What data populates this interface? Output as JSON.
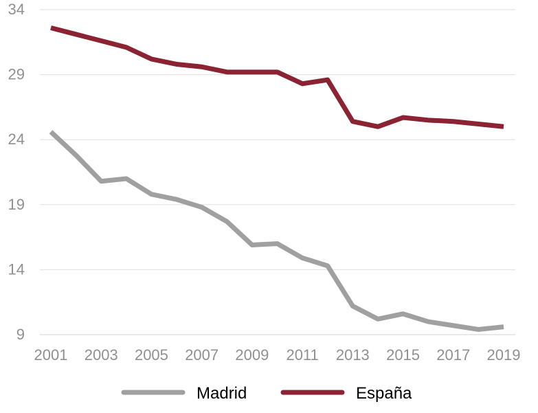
{
  "chart_data": {
    "type": "line",
    "title": "",
    "xlabel": "",
    "ylabel": "",
    "x": [
      2001,
      2002,
      2003,
      2004,
      2005,
      2006,
      2007,
      2008,
      2009,
      2010,
      2011,
      2012,
      2013,
      2014,
      2015,
      2016,
      2017,
      2018,
      2019
    ],
    "x_tick_labels": [
      "2001",
      "2003",
      "2005",
      "2007",
      "2009",
      "2011",
      "2013",
      "2015",
      "2017",
      "2019"
    ],
    "y_tick_labels": [
      "9",
      "14",
      "19",
      "24",
      "29",
      "34"
    ],
    "ylim": [
      9,
      34
    ],
    "grid": "horizontal",
    "legend_placement": "bottom",
    "series": [
      {
        "name": "Madrid",
        "color": "#A0A0A0",
        "values": [
          24.6,
          22.8,
          20.8,
          21.0,
          19.8,
          19.4,
          18.8,
          17.7,
          15.9,
          16.0,
          14.9,
          14.3,
          11.2,
          10.2,
          10.6,
          10.0,
          9.7,
          9.4,
          9.6
        ]
      },
      {
        "name": "España",
        "color": "#8B2332",
        "values": [
          32.6,
          32.1,
          31.6,
          31.1,
          30.2,
          29.8,
          29.6,
          29.2,
          29.2,
          29.2,
          28.3,
          28.6,
          25.4,
          25.0,
          25.7,
          25.5,
          25.4,
          25.2,
          25.0
        ]
      }
    ]
  }
}
